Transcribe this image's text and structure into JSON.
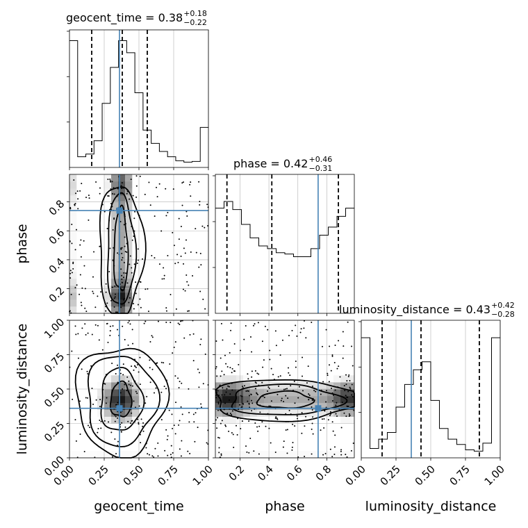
{
  "chart_data": {
    "type": "corner",
    "parameters": [
      "geocent_time",
      "phase",
      "luminosity_distance"
    ],
    "truth_color": "#4682b4",
    "truths": {
      "geocent_time": 0.36,
      "phase": 0.74,
      "luminosity_distance": 0.36
    },
    "titles": [
      {
        "param": "geocent_time",
        "prefix": "geocent_time = ",
        "median": "0.38",
        "plus": "+0.18",
        "minus": "−0.22"
      },
      {
        "param": "phase",
        "prefix": "phase = ",
        "median": "0.42",
        "plus": "+0.46",
        "minus": "−0.31"
      },
      {
        "param": "luminosity_distance",
        "prefix": "luminosity_distance = ",
        "median": "0.43",
        "plus": "+0.42",
        "minus": "−0.28"
      }
    ],
    "ranges": {
      "geocent_time": [
        0.0,
        1.0
      ],
      "phase": [
        0.03,
        0.99
      ],
      "luminosity_distance": [
        0.0,
        1.0
      ]
    },
    "ticks": {
      "geocent_time": [
        "0.00",
        "0.25",
        "0.50",
        "0.75",
        "1.00"
      ],
      "phase": [
        "0.2",
        "0.4",
        "0.6",
        "0.8"
      ],
      "luminosity_distance": [
        "0.00",
        "0.25",
        "0.50",
        "0.75",
        "1.00"
      ]
    },
    "quantiles": {
      "geocent_time": [
        0.16,
        0.38,
        0.56
      ],
      "phase": [
        0.11,
        0.42,
        0.88
      ],
      "luminosity_distance": [
        0.15,
        0.43,
        0.85
      ]
    },
    "histograms": {
      "geocent_time": [
        0.95,
        0.08,
        0.1,
        0.2,
        0.48,
        0.75,
        0.95,
        0.86,
        0.56,
        0.28,
        0.18,
        0.12,
        0.08,
        0.05,
        0.04,
        0.045,
        0.3
      ],
      "phase": [
        0.78,
        0.83,
        0.77,
        0.66,
        0.56,
        0.5,
        0.48,
        0.45,
        0.44,
        0.42,
        0.42,
        0.48,
        0.58,
        0.64,
        0.72,
        0.78
      ],
      "luminosity_distance": [
        0.9,
        0.07,
        0.14,
        0.19,
        0.38,
        0.55,
        0.66,
        0.72,
        0.43,
        0.22,
        0.14,
        0.1,
        0.06,
        0.05,
        0.11,
        0.9
      ]
    },
    "xlabels": [
      "geocent_time",
      "phase",
      "luminosity_distance"
    ],
    "ylabels": [
      "phase",
      "luminosity_distance"
    ]
  }
}
